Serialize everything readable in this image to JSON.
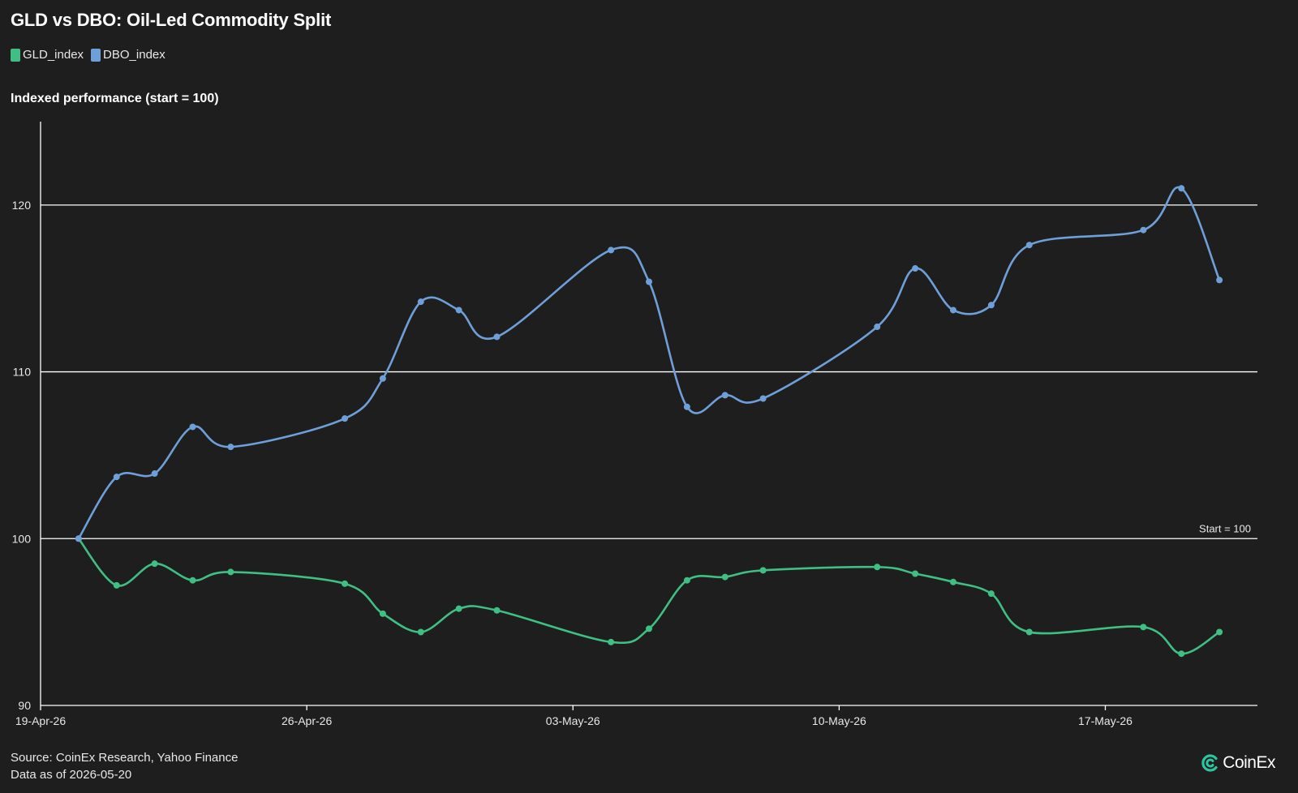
{
  "header": {
    "title": "GLD vs DBO: Oil-Led Commodity Split",
    "subtitle": "Indexed performance (start = 100)"
  },
  "legend": [
    {
      "label": "GLD_index",
      "color": "#3fbf83"
    },
    {
      "label": "DBO_index",
      "color": "#6f9fd8"
    }
  ],
  "footer": {
    "source": "Source: CoinEx Research, Yahoo Finance",
    "asof": "Data as of 2026-05-20"
  },
  "logo": {
    "text": "CoinEx",
    "icon": "coinex-logo-icon",
    "color": "#2ec4a0"
  },
  "colors": {
    "background": "#1e1e1e",
    "gld": "#3fbf83",
    "dbo": "#6f9fd8",
    "grid": "#ffffff"
  },
  "chart_data": {
    "type": "line",
    "title": "GLD vs DBO: Oil-Led Commodity Split",
    "subtitle": "Indexed performance (start = 100)",
    "xlabel": "",
    "ylabel": "",
    "x_ticks": [
      "19-Apr-26",
      "26-Apr-26",
      "03-May-26",
      "10-May-26",
      "17-May-26"
    ],
    "x_range": [
      "2026-04-19",
      "2026-05-21"
    ],
    "y_ticks": [
      90,
      100,
      110,
      120
    ],
    "ylim": [
      90,
      125
    ],
    "grid": "horizontal",
    "legend_position": "top-left",
    "reference_line": {
      "value": 100,
      "label": "Start = 100"
    },
    "x": [
      "2026-04-20",
      "2026-04-21",
      "2026-04-22",
      "2026-04-23",
      "2026-04-24",
      "2026-04-27",
      "2026-04-28",
      "2026-04-29",
      "2026-04-30",
      "2026-05-01",
      "2026-05-04",
      "2026-05-05",
      "2026-05-06",
      "2026-05-07",
      "2026-05-08",
      "2026-05-11",
      "2026-05-12",
      "2026-05-13",
      "2026-05-14",
      "2026-05-15",
      "2026-05-18",
      "2026-05-19",
      "2026-05-20"
    ],
    "series": [
      {
        "name": "GLD_index",
        "color": "#3fbf83",
        "values": [
          100.0,
          97.2,
          98.5,
          97.5,
          98.0,
          97.3,
          95.5,
          94.4,
          95.8,
          95.7,
          93.8,
          94.6,
          97.5,
          97.7,
          98.1,
          98.3,
          97.9,
          97.4,
          96.7,
          94.4,
          94.7,
          93.1,
          94.4
        ]
      },
      {
        "name": "DBO_index",
        "color": "#6f9fd8",
        "values": [
          100.0,
          103.7,
          103.9,
          106.7,
          105.5,
          107.2,
          109.6,
          114.2,
          113.7,
          112.1,
          117.3,
          115.4,
          107.9,
          108.6,
          108.4,
          112.7,
          116.2,
          113.7,
          114.0,
          117.6,
          118.5,
          121.0,
          115.5
        ]
      }
    ]
  }
}
